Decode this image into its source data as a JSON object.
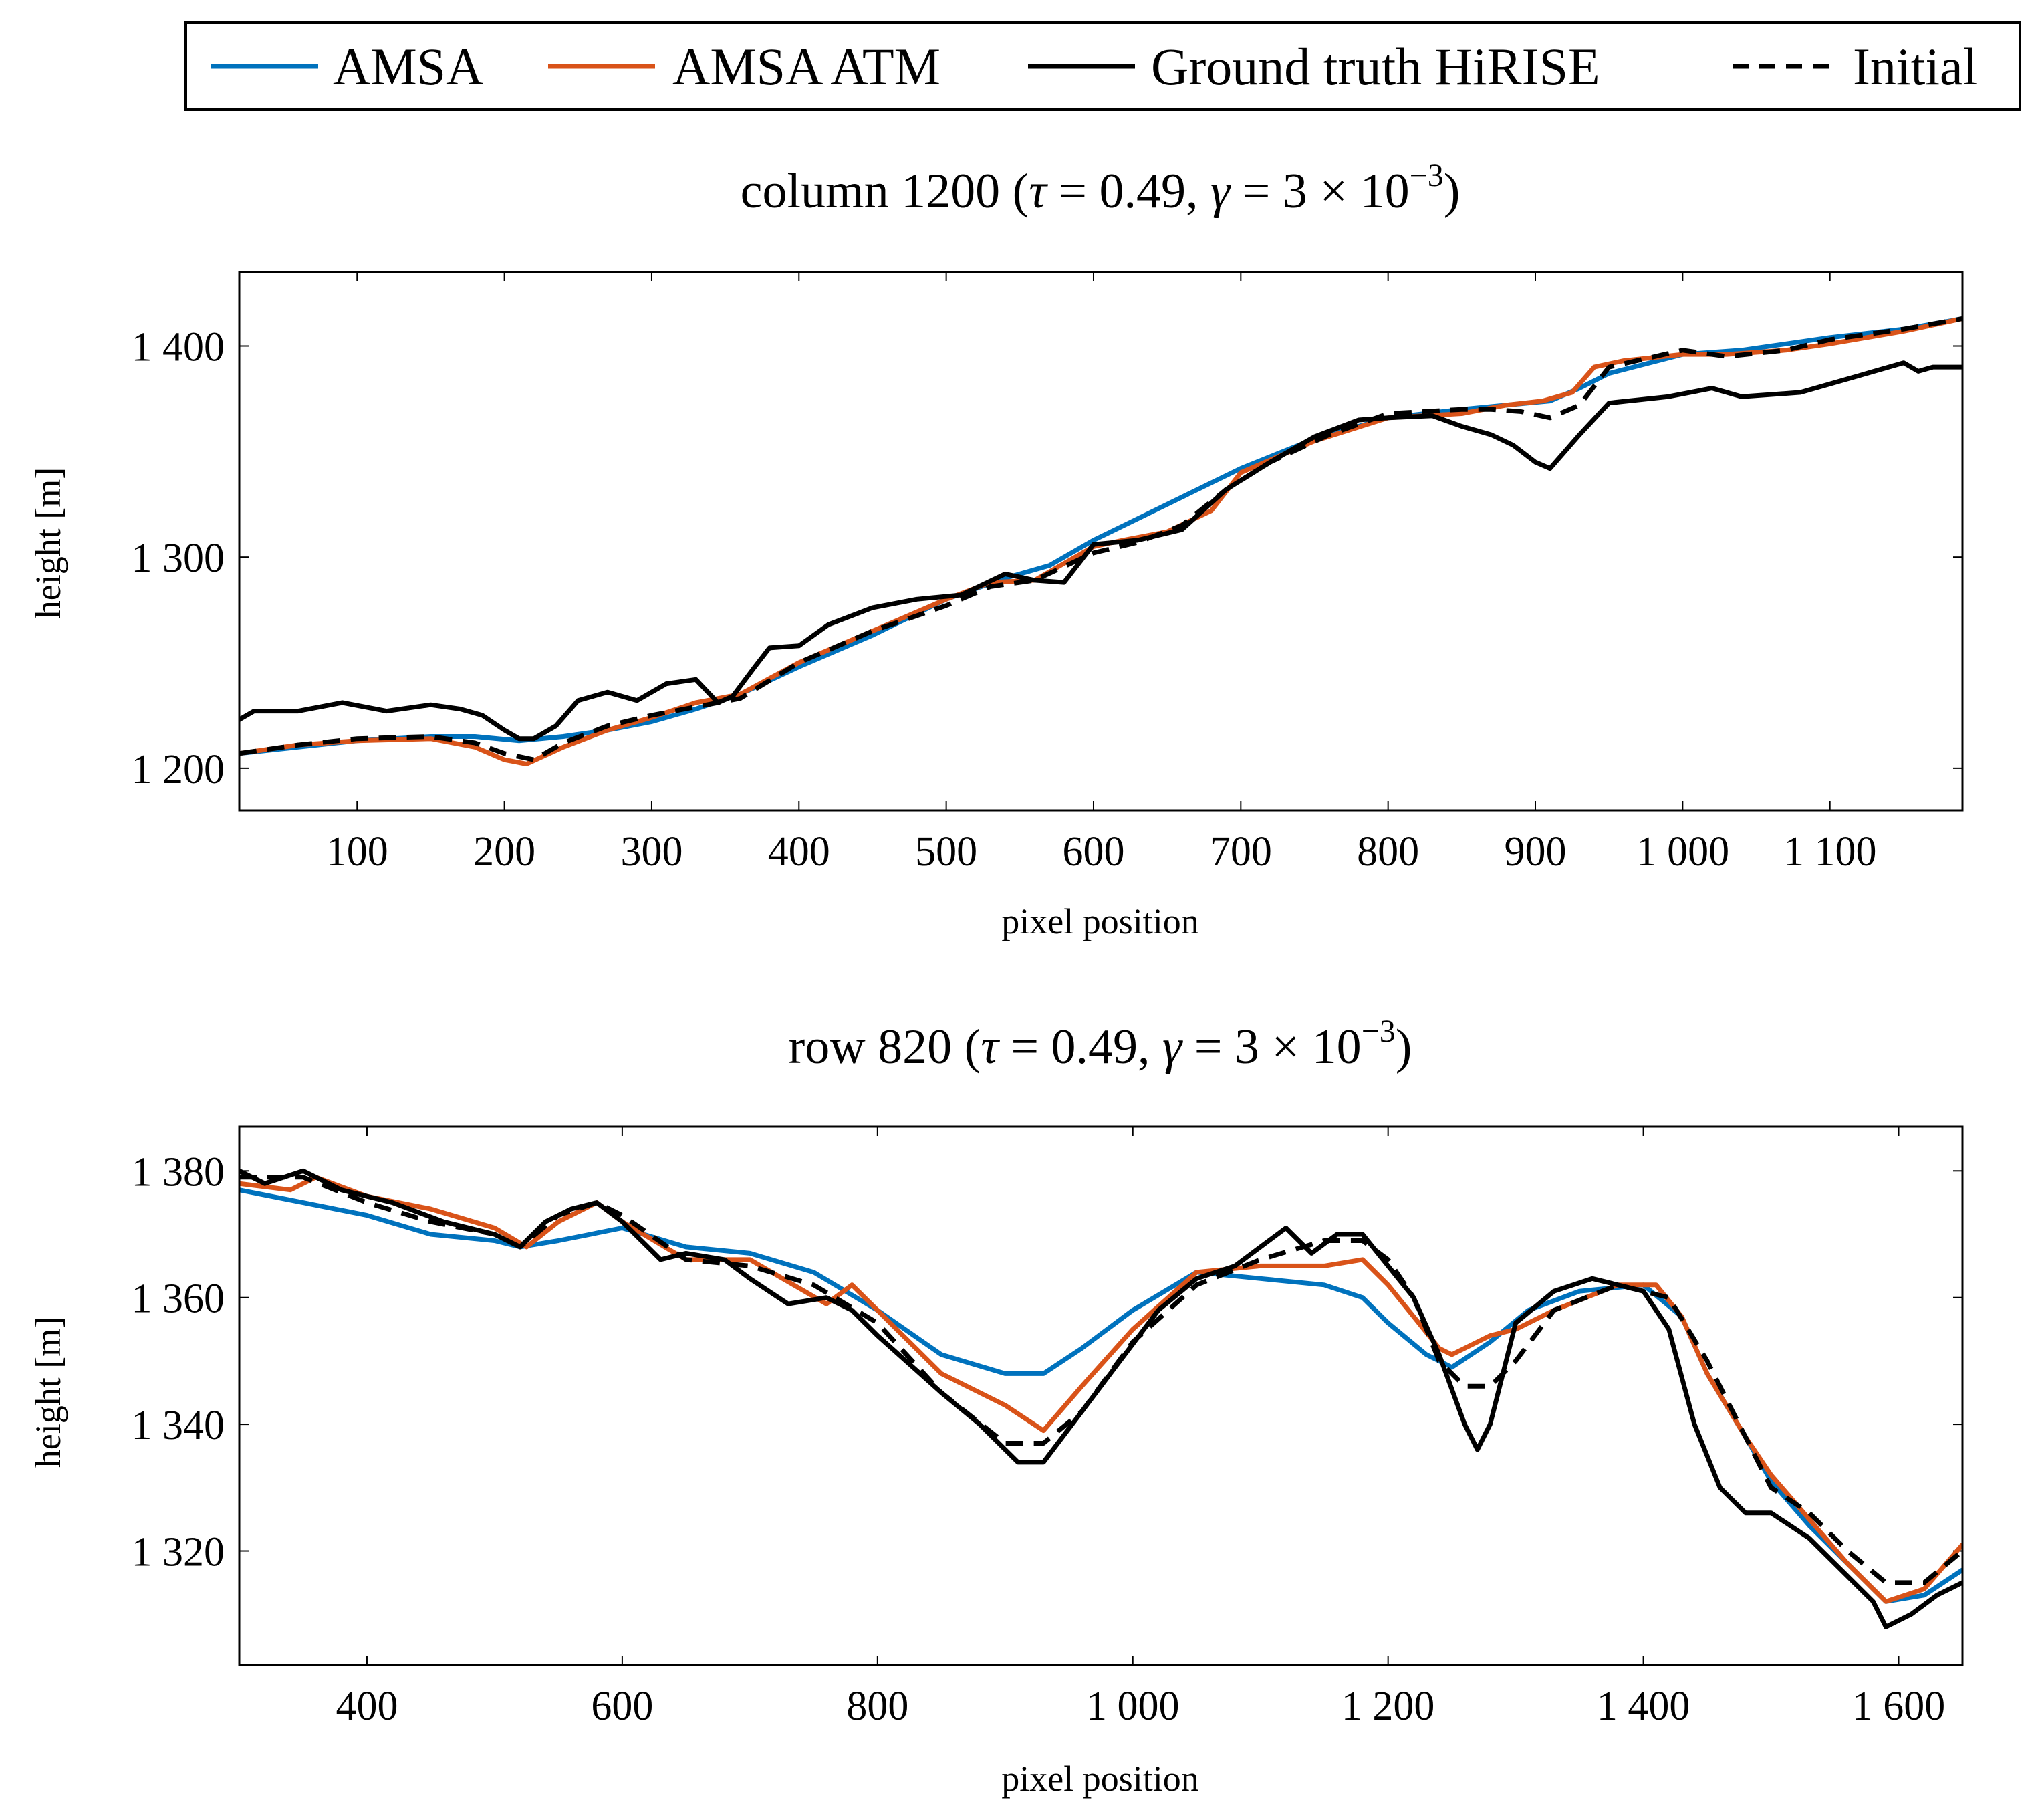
{
  "legend": {
    "entries": [
      {
        "label": "AMSA",
        "color": "#0072BD",
        "style": "solid"
      },
      {
        "label": "AMSA ATM",
        "color": "#D95319",
        "style": "solid"
      },
      {
        "label": "Ground truth HiRISE",
        "color": "#000000",
        "style": "solid"
      },
      {
        "label": "Initial",
        "color": "#000000",
        "style": "dashed"
      }
    ]
  },
  "chart_data": [
    {
      "type": "line",
      "title": "column 1200 (τ = 0.49, γ = 3 × 10⁻³)",
      "title_parts": {
        "prefix": "column 1200 (",
        "tau": "τ",
        "eq1": " = 0.49, ",
        "gamma": "γ",
        "eq2": " = 3 × 10",
        "exp": "−3",
        "suffix": ")"
      },
      "xlabel": "pixel position",
      "ylabel": "height [m]",
      "xlim": [
        20,
        1190
      ],
      "ylim": [
        1180,
        1435
      ],
      "xticks": [
        100,
        200,
        300,
        400,
        500,
        600,
        700,
        800,
        900,
        1000,
        1100
      ],
      "xtick_labels": [
        "100",
        "200",
        "300",
        "400",
        "500",
        "600",
        "700",
        "800",
        "900",
        "1 000",
        "1 100"
      ],
      "yticks": [
        1200,
        1300,
        1400
      ],
      "ytick_labels": [
        "1 200",
        "1 300",
        "1 400"
      ],
      "series": [
        {
          "name": "AMSA",
          "x": [
            20,
            60,
            100,
            150,
            180,
            210,
            240,
            270,
            300,
            330,
            360,
            400,
            450,
            500,
            540,
            570,
            600,
            650,
            700,
            750,
            800,
            850,
            880,
            910,
            930,
            950,
            1000,
            1040,
            1060,
            1100,
            1150,
            1190
          ],
          "y": [
            1207,
            1210,
            1213,
            1215,
            1215,
            1213,
            1215,
            1218,
            1222,
            1228,
            1235,
            1248,
            1263,
            1280,
            1290,
            1296,
            1308,
            1325,
            1342,
            1356,
            1366,
            1370,
            1372,
            1374,
            1380,
            1387,
            1396,
            1398,
            1400,
            1404,
            1408,
            1413
          ]
        },
        {
          "name": "AMSA ATM",
          "x": [
            20,
            60,
            100,
            150,
            180,
            200,
            215,
            240,
            270,
            300,
            330,
            360,
            400,
            450,
            500,
            530,
            560,
            600,
            620,
            650,
            680,
            700,
            750,
            800,
            850,
            880,
            905,
            925,
            940,
            960,
            1000,
            1030,
            1070,
            1100,
            1150,
            1190
          ],
          "y": [
            1207,
            1211,
            1213,
            1214,
            1210,
            1204,
            1202,
            1210,
            1218,
            1224,
            1231,
            1235,
            1250,
            1265,
            1280,
            1288,
            1289,
            1305,
            1308,
            1312,
            1322,
            1340,
            1355,
            1366,
            1368,
            1372,
            1374,
            1378,
            1390,
            1393,
            1396,
            1396,
            1398,
            1401,
            1407,
            1413
          ]
        },
        {
          "name": "Ground truth HiRISE",
          "x": [
            20,
            30,
            60,
            90,
            120,
            150,
            170,
            185,
            200,
            210,
            220,
            235,
            250,
            270,
            290,
            310,
            330,
            345,
            355,
            370,
            380,
            400,
            420,
            450,
            480,
            510,
            540,
            560,
            580,
            600,
            630,
            660,
            690,
            720,
            750,
            780,
            800,
            830,
            850,
            870,
            885,
            900,
            910,
            930,
            950,
            990,
            1020,
            1040,
            1080,
            1120,
            1150,
            1160,
            1170,
            1190
          ],
          "y": [
            1223,
            1227,
            1227,
            1231,
            1227,
            1230,
            1228,
            1225,
            1218,
            1214,
            1214,
            1220,
            1232,
            1236,
            1232,
            1240,
            1242,
            1231,
            1234,
            1248,
            1257,
            1258,
            1268,
            1276,
            1280,
            1282,
            1292,
            1289,
            1288,
            1306,
            1308,
            1313,
            1332,
            1345,
            1357,
            1365,
            1366,
            1367,
            1362,
            1358,
            1353,
            1345,
            1342,
            1358,
            1373,
            1376,
            1380,
            1376,
            1378,
            1386,
            1392,
            1388,
            1390,
            1390
          ]
        },
        {
          "name": "Initial",
          "x": [
            20,
            60,
            100,
            150,
            180,
            200,
            220,
            240,
            270,
            300,
            330,
            360,
            400,
            450,
            500,
            530,
            560,
            600,
            630,
            660,
            690,
            720,
            760,
            800,
            850,
            870,
            890,
            910,
            930,
            950,
            1000,
            1030,
            1070,
            1100,
            1150,
            1190
          ],
          "y": [
            1207,
            1211,
            1214,
            1215,
            1212,
            1207,
            1204,
            1212,
            1220,
            1225,
            1229,
            1233,
            1250,
            1265,
            1277,
            1286,
            1289,
            1302,
            1307,
            1315,
            1332,
            1345,
            1358,
            1368,
            1370,
            1370,
            1369,
            1366,
            1372,
            1390,
            1398,
            1395,
            1398,
            1403,
            1408,
            1413
          ]
        }
      ]
    },
    {
      "type": "line",
      "title": "row 820 (τ = 0.49, γ = 3 × 10⁻³)",
      "title_parts": {
        "prefix": "row 820 (",
        "tau": "τ",
        "eq1": " = 0.49, ",
        "gamma": "γ",
        "eq2": " = 3 × 10",
        "exp": "−3",
        "suffix": ")"
      },
      "xlabel": "pixel position",
      "ylabel": "height [m]",
      "xlim": [
        300,
        1650
      ],
      "ylim": [
        1302,
        1387
      ],
      "xticks": [
        400,
        600,
        800,
        1000,
        1200,
        1400,
        1600
      ],
      "xtick_labels": [
        "400",
        "600",
        "800",
        "1 000",
        "1 200",
        "1 400",
        "1 600"
      ],
      "yticks": [
        1320,
        1340,
        1360,
        1380
      ],
      "ytick_labels": [
        "1 320",
        "1 340",
        "1 360",
        "1 380"
      ],
      "series": [
        {
          "name": "AMSA",
          "x": [
            300,
            350,
            400,
            450,
            500,
            520,
            550,
            600,
            650,
            700,
            750,
            800,
            850,
            900,
            930,
            960,
            1000,
            1050,
            1100,
            1150,
            1180,
            1200,
            1230,
            1250,
            1280,
            1310,
            1350,
            1400,
            1430,
            1450,
            1480,
            1500,
            1530,
            1560,
            1590,
            1620,
            1650
          ],
          "y": [
            1377,
            1375,
            1373,
            1370,
            1369,
            1368,
            1369,
            1371,
            1368,
            1367,
            1364,
            1358,
            1351,
            1348,
            1348,
            1352,
            1358,
            1364,
            1363,
            1362,
            1360,
            1356,
            1351,
            1349,
            1353,
            1358,
            1361,
            1362,
            1357,
            1348,
            1338,
            1331,
            1324,
            1318,
            1312,
            1313,
            1317
          ]
        },
        {
          "name": "AMSA ATM",
          "x": [
            300,
            340,
            360,
            400,
            450,
            500,
            525,
            550,
            580,
            600,
            650,
            700,
            760,
            780,
            800,
            850,
            900,
            930,
            960,
            1000,
            1050,
            1100,
            1150,
            1180,
            1200,
            1220,
            1240,
            1250,
            1280,
            1300,
            1330,
            1380,
            1410,
            1430,
            1450,
            1480,
            1500,
            1530,
            1560,
            1590,
            1620,
            1650
          ],
          "y": [
            1378,
            1377,
            1379,
            1376,
            1374,
            1371,
            1368,
            1372,
            1375,
            1372,
            1366,
            1366,
            1359,
            1362,
            1358,
            1348,
            1343,
            1339,
            1346,
            1355,
            1364,
            1365,
            1365,
            1366,
            1362,
            1357,
            1352,
            1351,
            1354,
            1355,
            1358,
            1362,
            1362,
            1357,
            1348,
            1338,
            1332,
            1325,
            1318,
            1312,
            1314,
            1321
          ]
        },
        {
          "name": "Ground truth HiRISE",
          "x": [
            300,
            320,
            350,
            380,
            420,
            460,
            500,
            520,
            540,
            560,
            580,
            600,
            630,
            650,
            680,
            700,
            730,
            760,
            780,
            800,
            850,
            880,
            900,
            910,
            930,
            960,
            990,
            1020,
            1050,
            1080,
            1100,
            1120,
            1140,
            1160,
            1180,
            1200,
            1220,
            1240,
            1260,
            1270,
            1280,
            1300,
            1330,
            1360,
            1400,
            1420,
            1440,
            1460,
            1480,
            1500,
            1530,
            1560,
            1580,
            1590,
            1610,
            1630,
            1650
          ],
          "y": [
            1380,
            1378,
            1380,
            1377,
            1375,
            1372,
            1370,
            1368,
            1372,
            1374,
            1375,
            1372,
            1366,
            1367,
            1366,
            1363,
            1359,
            1360,
            1358,
            1354,
            1345,
            1340,
            1336,
            1334,
            1334,
            1342,
            1350,
            1358,
            1363,
            1365,
            1368,
            1371,
            1367,
            1370,
            1370,
            1365,
            1360,
            1351,
            1340,
            1336,
            1340,
            1356,
            1361,
            1363,
            1361,
            1355,
            1340,
            1330,
            1326,
            1326,
            1322,
            1316,
            1312,
            1308,
            1310,
            1313,
            1315
          ]
        },
        {
          "name": "Initial",
          "x": [
            300,
            350,
            400,
            450,
            500,
            520,
            550,
            580,
            600,
            650,
            700,
            750,
            800,
            850,
            900,
            930,
            960,
            1000,
            1050,
            1100,
            1150,
            1180,
            1200,
            1220,
            1240,
            1260,
            1280,
            1300,
            1330,
            1380,
            1420,
            1450,
            1480,
            1500,
            1530,
            1560,
            1590,
            1620,
            1650
          ],
          "y": [
            1379,
            1379,
            1375,
            1372,
            1370,
            1368,
            1373,
            1375,
            1373,
            1366,
            1365,
            1362,
            1356,
            1345,
            1337,
            1337,
            1342,
            1353,
            1362,
            1366,
            1369,
            1369,
            1366,
            1360,
            1350,
            1346,
            1346,
            1350,
            1358,
            1362,
            1360,
            1350,
            1338,
            1330,
            1326,
            1320,
            1315,
            1315,
            1320
          ]
        }
      ]
    }
  ]
}
